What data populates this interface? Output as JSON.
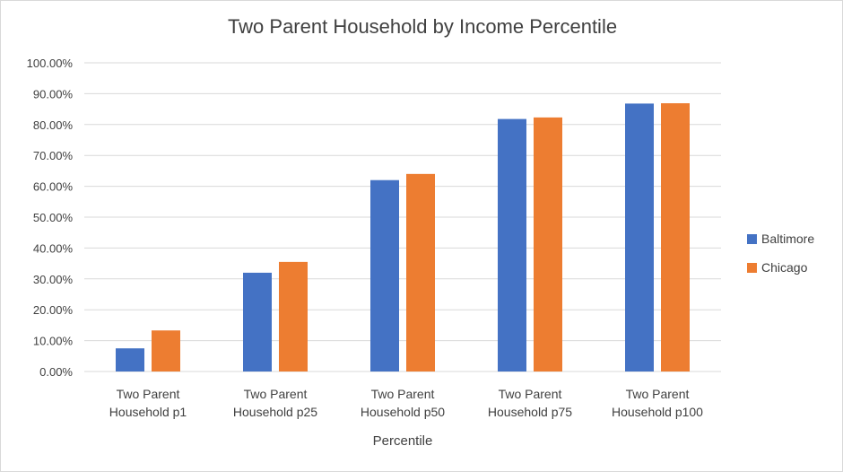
{
  "chart_data": {
    "type": "bar",
    "title": "Two Parent Household by Income Percentile",
    "xlabel": "Percentile",
    "ylabel": "",
    "categories": [
      [
        "Two Parent",
        "Household p1"
      ],
      [
        "Two Parent",
        "Household p25"
      ],
      [
        "Two Parent",
        "Household p50"
      ],
      [
        "Two Parent",
        "Household p75"
      ],
      [
        "Two Parent",
        "Household p100"
      ]
    ],
    "series": [
      {
        "name": "Baltimore",
        "color": "#4472C4",
        "values": [
          0.075,
          0.32,
          0.62,
          0.818,
          0.868
        ]
      },
      {
        "name": "Chicago",
        "color": "#ED7D31",
        "values": [
          0.133,
          0.355,
          0.64,
          0.823,
          0.869
        ]
      }
    ],
    "ylim": [
      0,
      1.0
    ],
    "yticks": [
      0,
      0.1,
      0.2,
      0.3,
      0.4,
      0.5,
      0.6,
      0.7,
      0.8,
      0.9,
      1.0
    ],
    "ytick_labels": [
      "0.00%",
      "10.00%",
      "20.00%",
      "30.00%",
      "40.00%",
      "50.00%",
      "60.00%",
      "70.00%",
      "80.00%",
      "90.00%",
      "100.00%"
    ],
    "grid": true,
    "legend_position": "right"
  }
}
